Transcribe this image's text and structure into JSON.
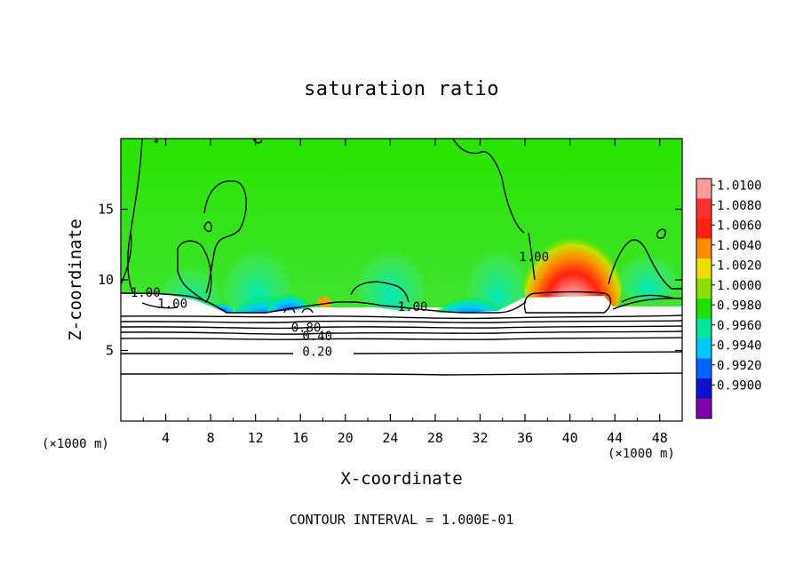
{
  "chart_data": {
    "type": "heatmap",
    "title": "saturation ratio",
    "xlabel": "X-coordinate",
    "ylabel": "Z-coordinate",
    "x_unit": "(×1000 m)",
    "xlim": [
      0,
      50
    ],
    "ylim": [
      0,
      20
    ],
    "x_ticks": [
      4,
      8,
      12,
      16,
      20,
      24,
      28,
      32,
      36,
      40,
      44,
      48
    ],
    "y_ticks": [
      5,
      10,
      15
    ],
    "colorbar": {
      "levels": [
        "1.0100",
        "1.0080",
        "1.0060",
        "1.0040",
        "1.0020",
        "1.0000",
        "0.9980",
        "0.9960",
        "0.9940",
        "0.9920",
        "0.9900"
      ],
      "colors": [
        "#ff9a9a",
        "#ff3030",
        "#ff2010",
        "#ff8c00",
        "#f0e000",
        "#8ee000",
        "#20e000",
        "#00e8a0",
        "#00c8ff",
        "#0064ff",
        "#1010d0",
        "#8000b0"
      ]
    },
    "contour_labels": [
      {
        "text": "1.00",
        "x": 2.2,
        "z": 9.0
      },
      {
        "text": "1.00",
        "x": 4.6,
        "z": 8.2
      },
      {
        "text": "0.80",
        "x": 16.5,
        "z": 6.5
      },
      {
        "text": "0.40",
        "x": 17.5,
        "z": 5.9
      },
      {
        "text": "0.20",
        "x": 17.5,
        "z": 4.8
      },
      {
        "text": "1.00",
        "x": 26.0,
        "z": 8.0
      },
      {
        "text": "1.00",
        "x": 36.8,
        "z": 11.5
      }
    ],
    "background_value": "1.0000",
    "footer": "CONTOUR INTERVAL = 1.000E-01"
  }
}
